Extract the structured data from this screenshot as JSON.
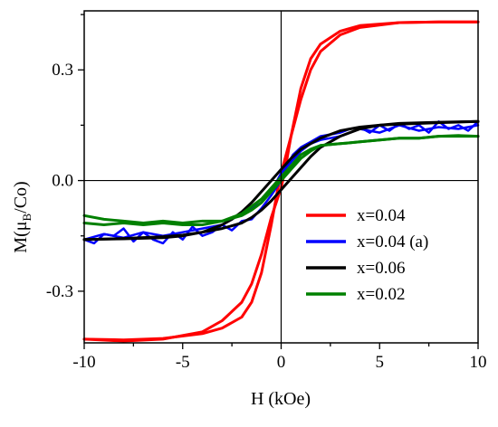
{
  "chart_data": {
    "type": "line",
    "xlabel": "H (kOe)",
    "ylabel": {
      "main": "M(μ",
      "sub": "B",
      "tail": "/Co)"
    },
    "xlim": [
      -10,
      10
    ],
    "ylim": [
      -0.44,
      0.46
    ],
    "x_ticks": [
      -10,
      -5,
      0,
      5,
      10
    ],
    "x_tick_labels": [
      "-10",
      "-5",
      "0",
      "5",
      "10"
    ],
    "y_ticks": [
      -0.3,
      0.0,
      0.3
    ],
    "y_tick_labels": [
      "-0.3",
      "0.0",
      "0.3"
    ],
    "zero_lines": true,
    "grid": false,
    "legend_position": "lower-right",
    "series": [
      {
        "name": "x=0.04",
        "color": "#ff0000",
        "width": 3,
        "branches": [
          {
            "x": [
              -10,
              -8,
              -6,
              -4,
              -3,
              -2,
              -1.5,
              -1,
              -0.5,
              0,
              0.2,
              0.5,
              1,
              1.5,
              2,
              3,
              4,
              6,
              8,
              10
            ],
            "y": [
              -0.43,
              -0.435,
              -0.43,
              -0.41,
              -0.38,
              -0.33,
              -0.28,
              -0.2,
              -0.1,
              -0.02,
              0.03,
              0.12,
              0.25,
              0.33,
              0.37,
              0.405,
              0.42,
              0.428,
              0.43,
              0.43
            ]
          },
          {
            "x": [
              10,
              8,
              6,
              4,
              3,
              2,
              1.5,
              1,
              0.5,
              0,
              -0.2,
              -0.5,
              -1,
              -1.5,
              -2,
              -3,
              -4,
              -6,
              -8,
              -10
            ],
            "y": [
              0.43,
              0.43,
              0.428,
              0.415,
              0.395,
              0.35,
              0.3,
              0.22,
              0.12,
              0.02,
              -0.03,
              -0.12,
              -0.25,
              -0.33,
              -0.37,
              -0.4,
              -0.415,
              -0.428,
              -0.432,
              -0.43
            ]
          }
        ]
      },
      {
        "name": "x=0.04 (a)",
        "color": "#0000ff",
        "width": 2.5,
        "branches": [
          {
            "x": [
              -10,
              -9.5,
              -9,
              -8.5,
              -8,
              -7.5,
              -7,
              -6.5,
              -6,
              -5.5,
              -5,
              -4.5,
              -4,
              -3.5,
              -3,
              -2.5,
              -2,
              -1.5,
              -1,
              -0.5,
              0,
              0.3,
              0.6,
              1,
              1.5,
              2,
              2.5,
              3,
              3.5,
              4,
              4.5,
              5,
              5.5,
              6,
              6.5,
              7,
              7.5,
              8,
              8.5,
              9,
              9.5,
              10
            ],
            "y": [
              -0.16,
              -0.17,
              -0.145,
              -0.15,
              -0.13,
              -0.165,
              -0.14,
              -0.16,
              -0.17,
              -0.14,
              -0.16,
              -0.125,
              -0.15,
              -0.14,
              -0.12,
              -0.135,
              -0.11,
              -0.105,
              -0.075,
              -0.04,
              0.0,
              0.04,
              0.07,
              0.09,
              0.105,
              0.12,
              0.125,
              0.13,
              0.14,
              0.145,
              0.13,
              0.15,
              0.135,
              0.155,
              0.14,
              0.15,
              0.13,
              0.16,
              0.14,
              0.15,
              0.135,
              0.16
            ]
          },
          {
            "x": [
              10,
              9,
              8,
              7,
              6,
              5,
              4,
              3,
              2,
              1.5,
              1,
              0.5,
              0,
              -0.5,
              -1,
              -2,
              -3,
              -4,
              -5,
              -6,
              -7,
              -8,
              -9,
              -10
            ],
            "y": [
              0.15,
              0.14,
              0.145,
              0.135,
              0.15,
              0.13,
              0.14,
              0.12,
              0.11,
              0.1,
              0.08,
              0.05,
              0.02,
              -0.03,
              -0.06,
              -0.09,
              -0.12,
              -0.13,
              -0.14,
              -0.15,
              -0.14,
              -0.155,
              -0.145,
              -0.16
            ]
          }
        ]
      },
      {
        "name": "x=0.06",
        "color": "#000000",
        "width": 3,
        "branches": [
          {
            "x": [
              -10,
              -8,
              -6,
              -5,
              -4,
              -3,
              -2.5,
              -2,
              -1.5,
              -1,
              -0.5,
              0,
              0.5,
              1,
              1.5,
              2,
              3,
              4,
              5,
              6,
              8,
              10
            ],
            "y": [
              -0.16,
              -0.158,
              -0.155,
              -0.15,
              -0.14,
              -0.12,
              -0.105,
              -0.085,
              -0.06,
              -0.03,
              0.0,
              0.03,
              0.06,
              0.085,
              0.1,
              0.115,
              0.135,
              0.145,
              0.15,
              0.153,
              0.157,
              0.16
            ]
          },
          {
            "x": [
              10,
              8,
              6,
              5,
              4,
              3,
              2,
              1.5,
              1,
              0.5,
              0,
              -0.5,
              -1,
              -1.5,
              -2,
              -3,
              -4,
              -5,
              -6,
              -8,
              -10
            ],
            "y": [
              0.16,
              0.158,
              0.155,
              0.15,
              0.14,
              0.12,
              0.09,
              0.065,
              0.035,
              0.005,
              -0.025,
              -0.055,
              -0.08,
              -0.1,
              -0.115,
              -0.13,
              -0.14,
              -0.148,
              -0.152,
              -0.157,
              -0.16
            ]
          }
        ]
      },
      {
        "name": "x=0.02",
        "color": "#008000",
        "width": 3,
        "branches": [
          {
            "x": [
              -10,
              -9,
              -8,
              -7,
              -6,
              -5,
              -4,
              -3,
              -2,
              -1.5,
              -1,
              -0.5,
              0,
              0.5,
              1,
              1.5,
              2,
              3,
              4,
              5,
              6,
              7,
              8,
              9,
              10
            ],
            "y": [
              -0.095,
              -0.105,
              -0.11,
              -0.115,
              -0.11,
              -0.115,
              -0.11,
              -0.11,
              -0.095,
              -0.08,
              -0.06,
              -0.03,
              0.0,
              0.03,
              0.06,
              0.08,
              0.095,
              0.1,
              0.105,
              0.11,
              0.115,
              0.115,
              0.12,
              0.12,
              0.12
            ]
          },
          {
            "x": [
              10,
              9,
              8,
              7,
              6,
              5,
              4,
              3,
              2,
              1.5,
              1,
              0.5,
              0,
              -0.5,
              -1,
              -1.5,
              -2,
              -3,
              -4,
              -5,
              -6,
              -7,
              -8,
              -9,
              -10
            ],
            "y": [
              0.12,
              0.122,
              0.12,
              0.115,
              0.115,
              0.11,
              0.105,
              0.1,
              0.095,
              0.085,
              0.07,
              0.04,
              0.01,
              -0.02,
              -0.05,
              -0.07,
              -0.09,
              -0.11,
              -0.12,
              -0.12,
              -0.115,
              -0.12,
              -0.115,
              -0.12,
              -0.115
            ]
          }
        ]
      }
    ]
  }
}
